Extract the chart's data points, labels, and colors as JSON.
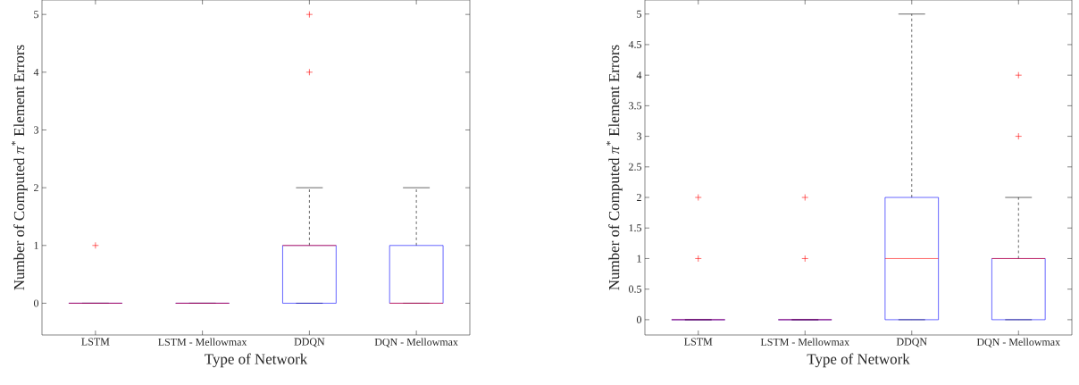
{
  "chart_data": [
    {
      "type": "box",
      "categories": [
        "LSTM",
        "LSTM - Mellowmax",
        "DDQN",
        "DQN - Mellowmax"
      ],
      "xlabel": "Type of Network",
      "ylabel": "Number of Computed *π*$^{*}$ Element Errors",
      "ylim": [
        -0.55,
        5.25
      ],
      "yticks": [
        0,
        1,
        2,
        3,
        4,
        5
      ],
      "marker": "cross",
      "color": "#0000ff",
      "boxes": [
        {
          "low": 0,
          "q1": 0,
          "median": 0,
          "q3": 0,
          "high": 0,
          "outliers": [
            1
          ]
        },
        {
          "low": 0,
          "q1": 0,
          "median": 0,
          "q3": 0,
          "high": 0
        },
        {
          "low": 0,
          "q1": 0,
          "median": 1,
          "q3": 1,
          "high": 2,
          "outliers": [
            4,
            5
          ]
        },
        {
          "low": 0,
          "q1": 0,
          "median": 0,
          "q3": 1,
          "high": 2
        }
      ]
    },
    {
      "type": "box",
      "categories": [
        "LSTM",
        "LSTM - Mellowmax",
        "DDQN",
        "DQN - Mellowmax"
      ],
      "xlabel": "Type of Network",
      "ylabel": "Number of Computed *π*$^{*}$ Element Errors",
      "ylim": [
        -0.25,
        5.23
      ],
      "yticks": [
        0,
        0.5,
        1,
        1.5,
        2,
        2.5,
        3,
        3.5,
        4,
        4.5,
        5
      ],
      "marker": "cross",
      "color": "#0000ff",
      "boxes": [
        {
          "low": 0,
          "q1": 0,
          "median": 0,
          "q3": 0,
          "high": 0,
          "outliers": [
            1,
            2
          ]
        },
        {
          "low": 0,
          "q1": 0,
          "median": 0,
          "q3": 0,
          "high": 0,
          "outliers": [
            1,
            2
          ]
        },
        {
          "low": 0,
          "q1": 0,
          "median": 1,
          "q3": 2,
          "high": 5
        },
        {
          "low": 0,
          "q1": 0,
          "median": 1,
          "q3": 1,
          "high": 2,
          "outliers": [
            3,
            4
          ]
        }
      ]
    }
  ]
}
